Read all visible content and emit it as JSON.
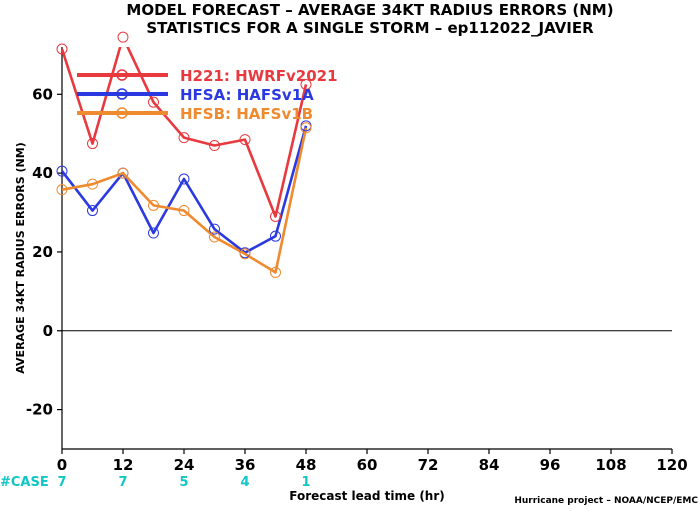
{
  "chart_data": {
    "type": "line",
    "title": "MODEL FORECAST – AVERAGE 34KT RADIUS ERRORS (NM)",
    "subtitle": "STATISTICS FOR A SINGLE STORM – ep112022_JAVIER",
    "xlabel": "Forecast lead time (hr)",
    "ylabel": "AVERAGE 34KT RADIUS ERRORS (NM)",
    "xlim": [
      0,
      120
    ],
    "ylim": [
      -30,
      72
    ],
    "x_ticks": [
      0,
      12,
      24,
      36,
      48,
      60,
      72,
      84,
      96,
      108,
      120
    ],
    "y_ticks": [
      -20,
      0,
      20,
      40,
      60
    ],
    "zero_line": true,
    "legend_position": "top-left",
    "series": [
      {
        "name": "H221: HWRFv2021",
        "color": "#e8393f",
        "x": [
          0,
          6,
          12,
          18,
          24,
          30,
          36,
          42,
          48
        ],
        "y": [
          71.5,
          47.5,
          74.5,
          58,
          49,
          47,
          48.5,
          29,
          62.5
        ]
      },
      {
        "name": "HFSA: HAFSv1A",
        "color": "#2b39e0",
        "x": [
          0,
          6,
          12,
          18,
          24,
          30,
          36,
          42,
          48
        ],
        "y": [
          40.5,
          30.5,
          40,
          24.8,
          38.5,
          25.8,
          19.8,
          24,
          52
        ]
      },
      {
        "name": "HFSB: HAFSv1B",
        "color": "#ef8a2e",
        "x": [
          0,
          6,
          12,
          18,
          24,
          30,
          36,
          42,
          48
        ],
        "y": [
          35.8,
          37.2,
          40,
          31.8,
          30.5,
          23.8,
          19.5,
          14.8,
          51.5
        ]
      }
    ],
    "case_label": "#CASE",
    "case_color": "#11c6c6",
    "cases": [
      {
        "x": 0,
        "count": "7"
      },
      {
        "x": 12,
        "count": "7"
      },
      {
        "x": 24,
        "count": "5"
      },
      {
        "x": 36,
        "count": "4"
      },
      {
        "x": 48,
        "count": "1"
      }
    ],
    "credit": "Hurricane project – NOAA/NCEP/EMC"
  }
}
